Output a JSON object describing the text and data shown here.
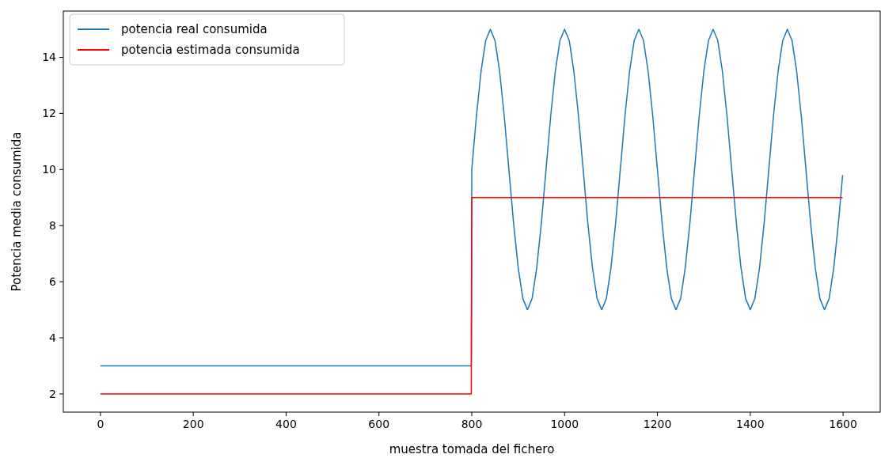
{
  "chart_data": {
    "type": "line",
    "xlabel": "muestra tomada del fichero",
    "ylabel": "Potencia media consumida",
    "xlim": [
      -80,
      1680
    ],
    "xticks": [
      0,
      200,
      400,
      600,
      800,
      1000,
      1200,
      1400,
      1600
    ],
    "ylim": [
      1.35,
      15.65
    ],
    "yticks": [
      2,
      4,
      6,
      8,
      10,
      12,
      14
    ],
    "grid": false,
    "legend": "top left",
    "marker": "none",
    "line_style": "solid",
    "series": [
      {
        "name": "potencia real consumida",
        "color": "#1f77b4",
        "x": [
          0,
          799,
          800,
          810,
          820,
          830,
          840,
          850,
          860,
          870,
          880,
          890,
          900,
          910,
          920,
          930,
          940,
          950,
          960,
          970,
          980,
          990,
          1000,
          1010,
          1020,
          1030,
          1040,
          1050,
          1060,
          1070,
          1080,
          1090,
          1100,
          1110,
          1120,
          1130,
          1140,
          1150,
          1160,
          1170,
          1180,
          1190,
          1200,
          1210,
          1220,
          1230,
          1240,
          1250,
          1260,
          1270,
          1280,
          1290,
          1300,
          1310,
          1320,
          1330,
          1340,
          1350,
          1360,
          1370,
          1380,
          1390,
          1400,
          1410,
          1420,
          1430,
          1440,
          1450,
          1460,
          1470,
          1480,
          1490,
          1500,
          1510,
          1520,
          1530,
          1540,
          1550,
          1560,
          1570,
          1580,
          1590,
          1599
        ],
        "values": [
          3,
          3,
          10,
          11.9,
          13.5,
          14.6,
          15,
          14.6,
          13.5,
          11.9,
          10,
          8.1,
          6.5,
          5.4,
          5,
          5.4,
          6.5,
          8.1,
          10,
          11.9,
          13.5,
          14.6,
          15,
          14.6,
          13.5,
          11.9,
          10,
          8.1,
          6.5,
          5.4,
          5,
          5.4,
          6.5,
          8.1,
          10,
          11.9,
          13.5,
          14.6,
          15,
          14.6,
          13.5,
          11.9,
          10,
          8.1,
          6.5,
          5.4,
          5,
          5.4,
          6.5,
          8.1,
          10,
          11.9,
          13.5,
          14.6,
          15,
          14.6,
          13.5,
          11.9,
          10,
          8.1,
          6.5,
          5.4,
          5,
          5.4,
          6.5,
          8.1,
          10,
          11.9,
          13.5,
          14.6,
          15,
          14.6,
          13.5,
          11.9,
          10,
          8.1,
          6.5,
          5.4,
          5,
          5.4,
          6.5,
          8.1,
          9.8
        ]
      },
      {
        "name": "potencia estimada consumida",
        "color": "#ff0000",
        "x": [
          0,
          799,
          800,
          1599
        ],
        "values": [
          2,
          2,
          9,
          9
        ]
      }
    ]
  }
}
